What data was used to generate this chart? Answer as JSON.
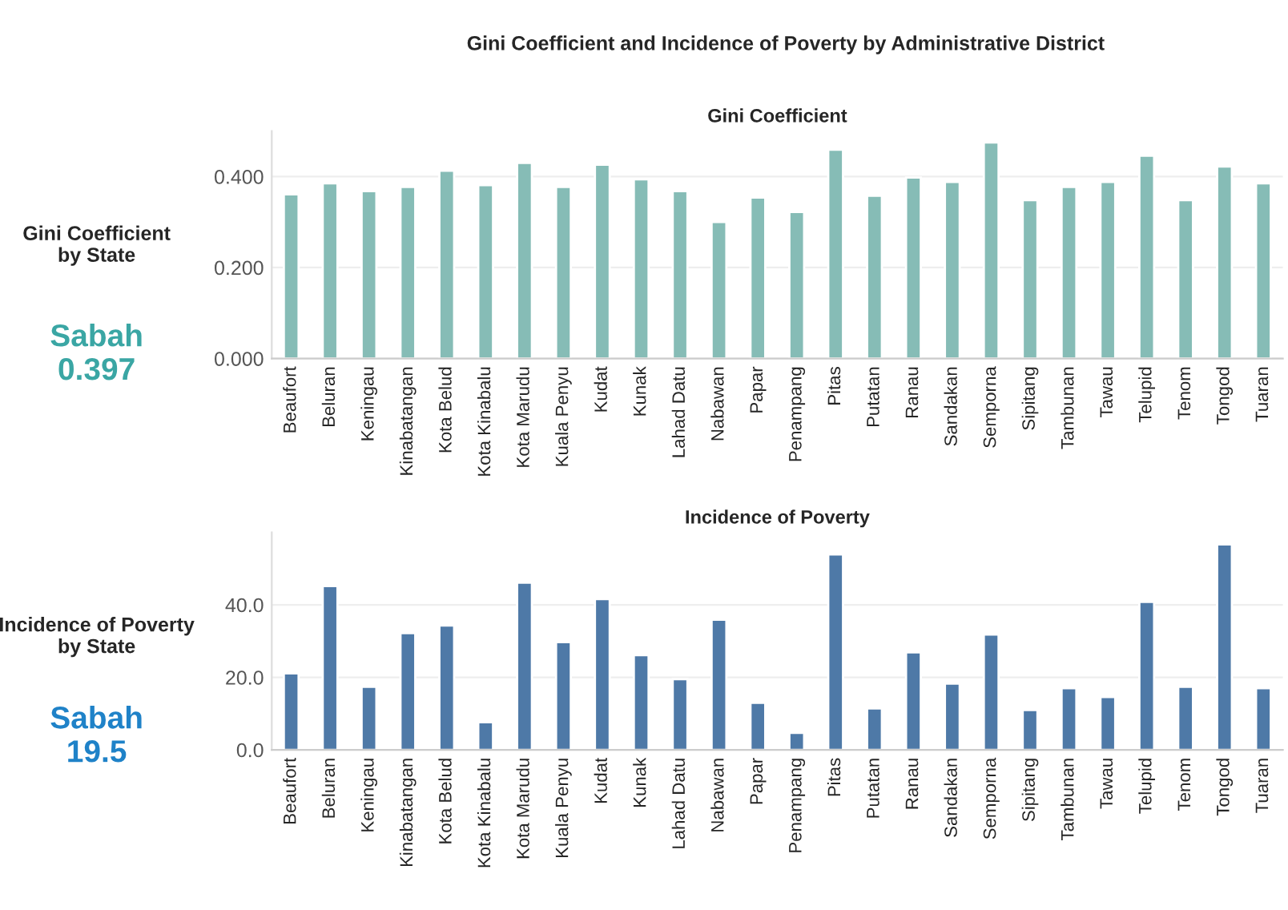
{
  "chart_data": [
    {
      "type": "bar",
      "title": "Gini Coefficient",
      "annotations": [
        "Gini Coefficient and Incidence of Poverty by Administrative District",
        "Gini Coefficient\nby State",
        "Sabah\n0.397"
      ],
      "categories": [
        "Beaufort",
        "Beluran",
        "Keningau",
        "Kinabatangan",
        "Kota Belud",
        "Kota Kinabalu",
        "Kota Marudu",
        "Kuala Penyu",
        "Kudat",
        "Kunak",
        "Lahad Datu",
        "Nabawan",
        "Papar",
        "Penampang",
        "Pitas",
        "Putatan",
        "Ranau",
        "Sandakan",
        "Semporna",
        "Sipitang",
        "Tambunan",
        "Tawau",
        "Telupid",
        "Tenom",
        "Tongod",
        "Tuaran"
      ],
      "series": [
        {
          "color": "#86bcb6",
          "values": [
            0.361,
            0.385,
            0.368,
            0.377,
            0.413,
            0.381,
            0.43,
            0.377,
            0.426,
            0.394,
            0.368,
            0.3,
            0.354,
            0.322,
            0.459,
            0.358,
            0.398,
            0.388,
            0.475,
            0.348,
            0.377,
            0.388,
            0.446,
            0.348,
            0.422,
            0.385
          ]
        }
      ],
      "ylim": [
        0,
        0.5
      ],
      "yticks": [
        {
          "value": 0,
          "label": "0.000"
        },
        {
          "value": 0.2,
          "label": "0.200"
        },
        {
          "value": 0.4,
          "label": "0.400"
        }
      ],
      "grid": "y"
    },
    {
      "type": "bar",
      "title": "Incidence of Poverty",
      "annotations": [
        "Incidence of Poverty\nby State",
        "Sabah\n19.5"
      ],
      "categories": [
        "Beaufort",
        "Beluran",
        "Keningau",
        "Kinabatangan",
        "Kota Belud",
        "Kota Kinabalu",
        "Kota Marudu",
        "Kuala Penyu",
        "Kudat",
        "Kunak",
        "Lahad Datu",
        "Nabawan",
        "Papar",
        "Penampang",
        "Pitas",
        "Putatan",
        "Ranau",
        "Sandakan",
        "Semporna",
        "Sipitang",
        "Tambunan",
        "Tawau",
        "Telupid",
        "Tenom",
        "Tongod",
        "Tuaran"
      ],
      "series": [
        {
          "color": "#4e79a7",
          "values": [
            21.1,
            45.2,
            17.4,
            32.2,
            34.3,
            7.6,
            46.1,
            29.7,
            41.6,
            26.1,
            19.5,
            35.9,
            13.0,
            4.7,
            53.9,
            11.4,
            26.9,
            18.3,
            31.8,
            11.0,
            17.0,
            14.6,
            40.8,
            17.4,
            56.7,
            17.0
          ]
        }
      ],
      "ylim": [
        0,
        60
      ],
      "yticks": [
        {
          "value": 0,
          "label": "0.0"
        },
        {
          "value": 20,
          "label": "20.0"
        },
        {
          "value": 40,
          "label": "40.0"
        }
      ],
      "grid": "y"
    }
  ]
}
